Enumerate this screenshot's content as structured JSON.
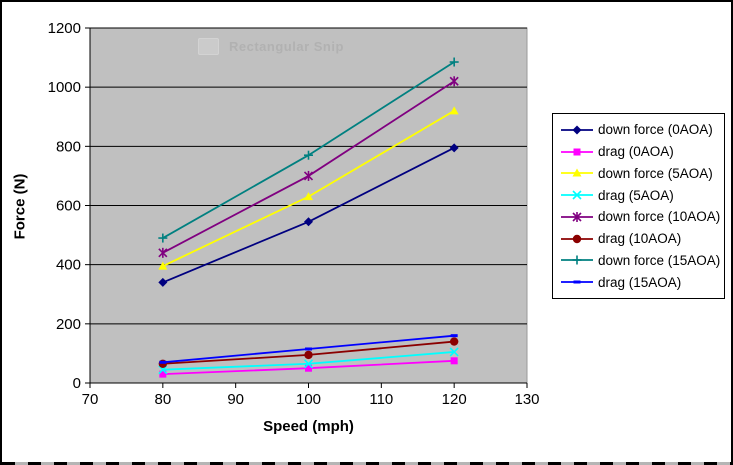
{
  "figure": {
    "background": "#ffffff",
    "border_color": "#000000",
    "selection_marquee": true
  },
  "watermark": {
    "label": "Rectangular Snip",
    "icon": "rectangular-snip-icon"
  },
  "chart_data": {
    "type": "line",
    "title": "",
    "xlabel": "Speed (mph)",
    "ylabel": "Force (N)",
    "x": [
      80,
      100,
      120
    ],
    "xlim": [
      70,
      130
    ],
    "ylim": [
      0,
      1200
    ],
    "x_ticks": [
      70,
      80,
      90,
      100,
      110,
      120,
      130
    ],
    "y_ticks": [
      0,
      200,
      400,
      600,
      800,
      1000,
      1200
    ],
    "grid": "horizontal-black",
    "plot_background": "#c0c0c0",
    "axis_color": "#000000",
    "legend_position": "right",
    "series": [
      {
        "name": "down force (0AOA)",
        "color": "#000080",
        "marker": "diamond",
        "values": [
          340,
          545,
          795
        ]
      },
      {
        "name": "drag (0AOA)",
        "color": "#ff00ff",
        "marker": "square",
        "values": [
          30,
          50,
          75
        ]
      },
      {
        "name": "down force (5AOA)",
        "color": "#ffff00",
        "marker": "triangle",
        "values": [
          395,
          630,
          920
        ]
      },
      {
        "name": "drag (5AOA)",
        "color": "#00ffff",
        "marker": "x",
        "values": [
          45,
          65,
          105
        ]
      },
      {
        "name": "down force (10AOA)",
        "color": "#800080",
        "marker": "star",
        "values": [
          440,
          700,
          1020
        ]
      },
      {
        "name": "drag (10AOA)",
        "color": "#8b0000",
        "marker": "circle",
        "values": [
          65,
          95,
          140
        ]
      },
      {
        "name": "down force (15AOA)",
        "color": "#008080",
        "marker": "plus",
        "values": [
          490,
          770,
          1085
        ]
      },
      {
        "name": "drag (15AOA)",
        "color": "#0000ff",
        "marker": "dash",
        "values": [
          70,
          115,
          160
        ]
      }
    ]
  }
}
